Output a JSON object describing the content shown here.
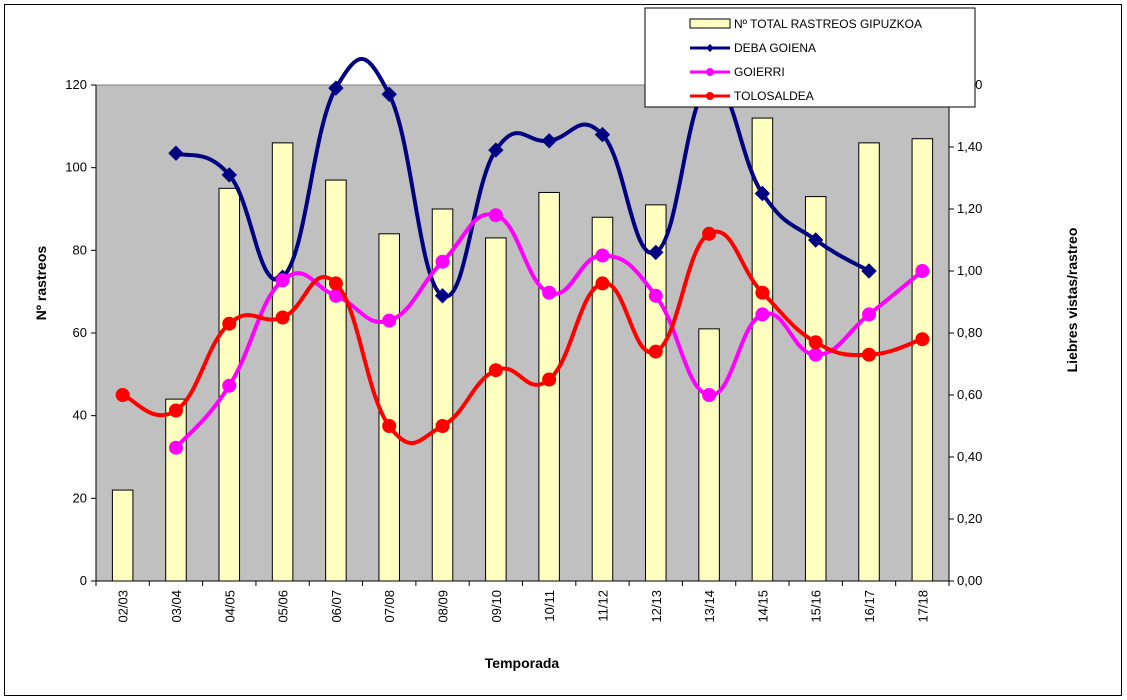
{
  "chart_data": {
    "type": "bar",
    "categories": [
      "02/03",
      "03/04",
      "04/05",
      "05/06",
      "06/07",
      "07/08",
      "08/09",
      "09/10",
      "10/11",
      "11/12",
      "12/13",
      "13/14",
      "14/15",
      "15/16",
      "16/17",
      "17/18"
    ],
    "xlabel": "Temporada",
    "ylabel": "Nº rastreos",
    "y2label": "Liebres vistas/rastreo",
    "ylim": [
      0,
      120
    ],
    "y2lim": [
      0,
      1.6
    ],
    "yticks": [
      "0",
      "20",
      "40",
      "60",
      "80",
      "100",
      "120"
    ],
    "y2ticks": [
      "0,00",
      "0,20",
      "0,40",
      "0,60",
      "0,80",
      "1,00",
      "1,20",
      "1,40",
      "1,60"
    ],
    "plot_background": "#c0c0c0",
    "grid": false,
    "legend_position": "top-right",
    "series": [
      {
        "name": "Nº TOTAL RASTREOS GIPUZKOA",
        "type": "bar",
        "axis": "left",
        "color": "#ffffc0",
        "values": [
          22,
          44,
          95,
          106,
          97,
          84,
          90,
          83,
          94,
          88,
          91,
          61,
          112,
          93,
          106,
          107
        ]
      },
      {
        "name": "DEBA GOIENA",
        "type": "line",
        "axis": "right",
        "color": "#000080",
        "marker": "diamond",
        "values": [
          null,
          1.38,
          1.31,
          0.98,
          1.59,
          1.57,
          0.92,
          1.39,
          1.42,
          1.44,
          1.06,
          1.6,
          1.25,
          1.1,
          1.0,
          null
        ]
      },
      {
        "name": "GOIERRI",
        "type": "line",
        "axis": "right",
        "color": "#ff00ff",
        "marker": "circle",
        "values": [
          null,
          0.43,
          0.63,
          0.97,
          0.92,
          0.84,
          1.03,
          1.18,
          0.93,
          1.05,
          0.92,
          0.6,
          0.86,
          0.73,
          0.86,
          1.0
        ]
      },
      {
        "name": "TOLOSALDEA",
        "type": "line",
        "axis": "right",
        "color": "#ff0000",
        "marker": "circle",
        "values": [
          0.6,
          0.55,
          0.83,
          0.85,
          0.96,
          0.5,
          0.5,
          0.68,
          0.65,
          0.96,
          0.74,
          1.12,
          0.93,
          0.77,
          0.73,
          0.78
        ]
      }
    ]
  }
}
